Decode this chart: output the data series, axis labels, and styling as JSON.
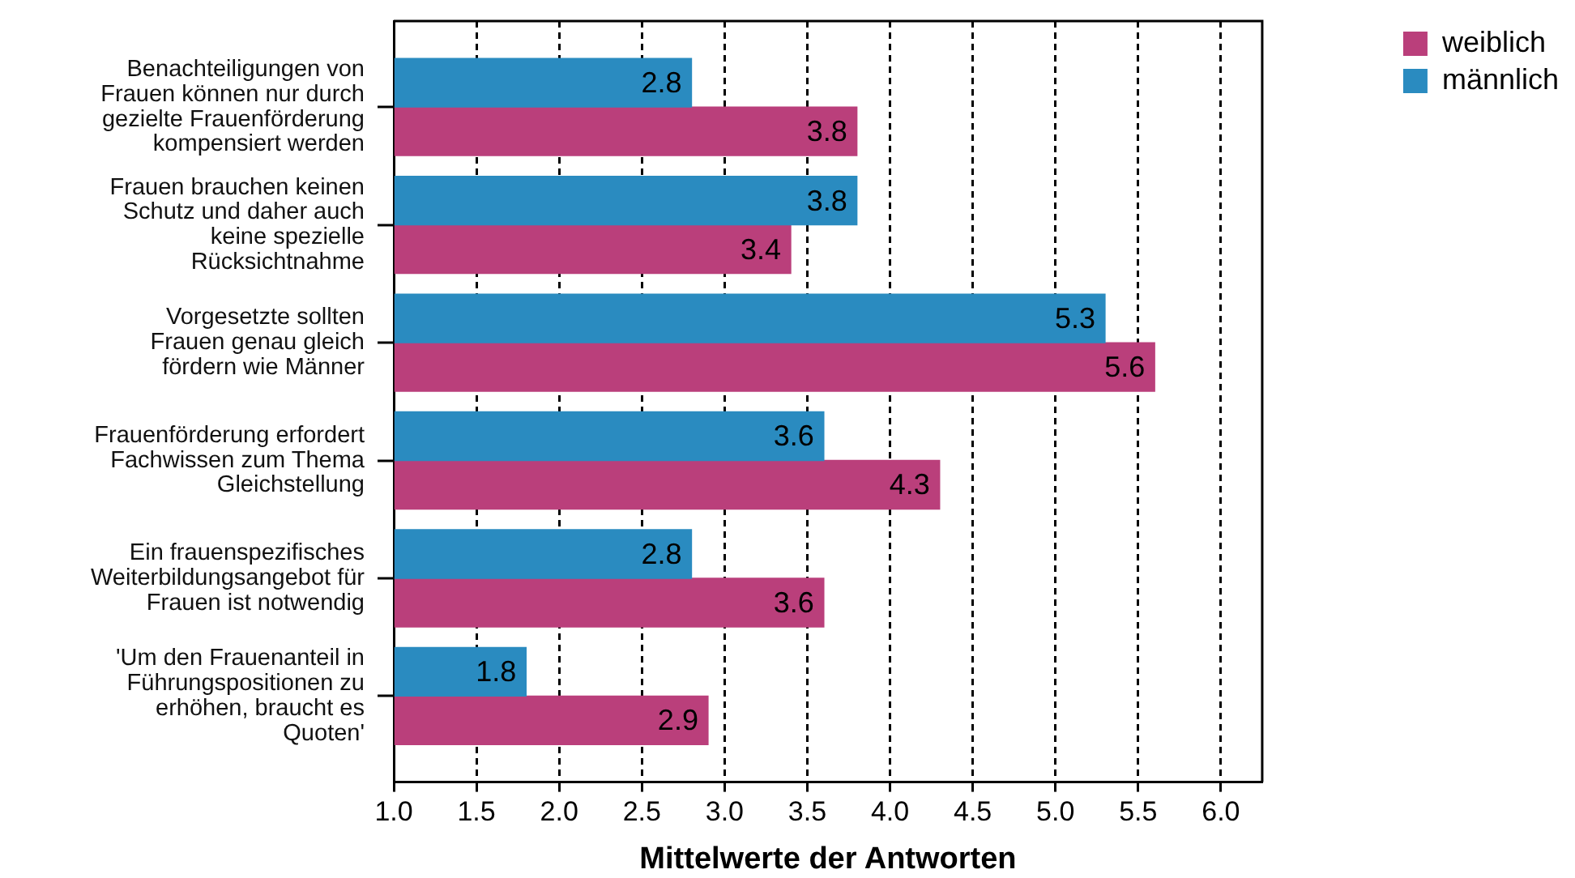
{
  "chart_data": {
    "type": "bar",
    "orientation": "horizontal",
    "xlabel": "Mittelwerte der Antworten",
    "categories": [
      "Benachteiligungen von\nFrauen können nur durch\ngezielte Frauenförderung\nkompensiert werden",
      "Frauen brauchen keinen\nSchutz und daher auch\nkeine spezielle\nRücksichtnahme",
      "Vorgesetzte sollten\nFrauen genau gleich\nfördern wie Männer",
      "Frauenförderung erfordert\nFachwissen zum Thema\nGleichstellung",
      "Ein frauenspezifisches\nWeiterbildungsangebot für\nFrauen ist notwendig",
      "'Um den Frauenanteil in\nFührungspositionen zu\nerhöhen, braucht es\nQuoten'"
    ],
    "series": [
      {
        "name": "männlich",
        "color": "#2a8bc0",
        "values": [
          2.8,
          3.8,
          5.3,
          3.6,
          2.8,
          1.8
        ]
      },
      {
        "name": "weiblich",
        "color": "#ba3f7b",
        "values": [
          3.8,
          3.4,
          5.6,
          4.3,
          3.6,
          2.9
        ]
      }
    ],
    "xlim": [
      1,
      6.25
    ],
    "xticks": [
      {
        "value": 1,
        "label": "1.0"
      },
      {
        "value": 1.5,
        "label": "1.5"
      },
      {
        "value": 2,
        "label": "2.0"
      },
      {
        "value": 2.5,
        "label": "2.5"
      },
      {
        "value": 3,
        "label": "3.0"
      },
      {
        "value": 3.5,
        "label": "3.5"
      },
      {
        "value": 4,
        "label": "4.0"
      },
      {
        "value": 4.5,
        "label": "4.5"
      },
      {
        "value": 5,
        "label": "5.0"
      },
      {
        "value": 5.5,
        "label": "5.5"
      },
      {
        "value": 6,
        "label": "6.0"
      }
    ],
    "grid": "x",
    "legend": "top right",
    "data_labels": true
  }
}
